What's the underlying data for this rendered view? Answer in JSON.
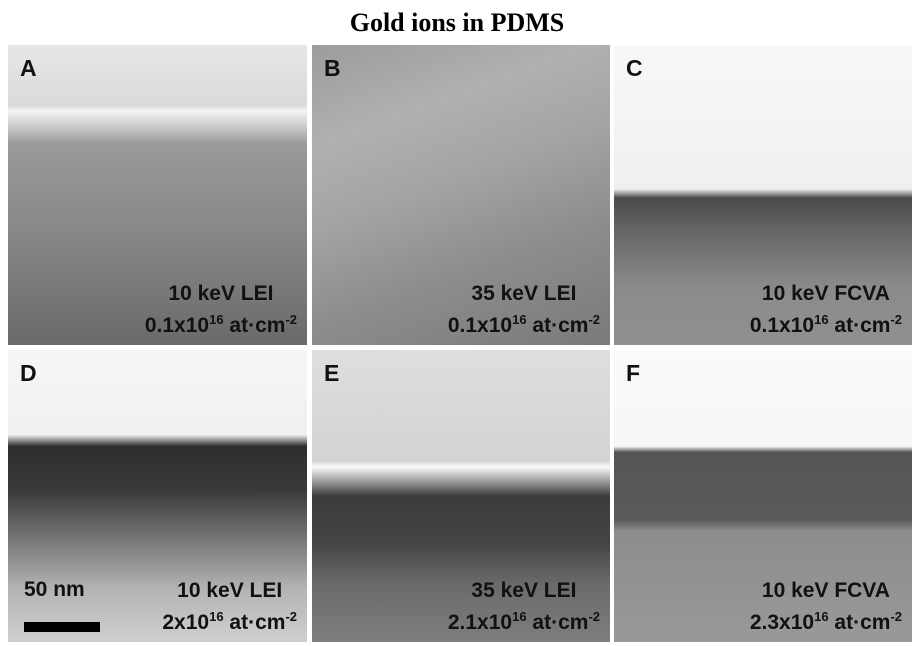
{
  "title": "Gold ions in PDMS",
  "panels": [
    {
      "label": "A",
      "energy": "10 keV LEI",
      "dose": {
        "base": "0.1x10",
        "exp": "16",
        "unit": "at·cm",
        "unit_exp": "-2"
      }
    },
    {
      "label": "B",
      "energy": "35 keV LEI",
      "dose": {
        "base": "0.1x10",
        "exp": "16",
        "unit": "at·cm",
        "unit_exp": "-2"
      }
    },
    {
      "label": "C",
      "energy": "10 keV FCVA",
      "dose": {
        "base": "0.1x10",
        "exp": "16",
        "unit": "at·cm",
        "unit_exp": "-2"
      }
    },
    {
      "label": "D",
      "energy": "10 keV LEI",
      "dose": {
        "base": "2x10",
        "exp": "16",
        "unit": "at·cm",
        "unit_exp": "-2"
      },
      "scale_bar": "50 nm"
    },
    {
      "label": "E",
      "energy": "35 keV LEI",
      "dose": {
        "base": "2.1x10",
        "exp": "16",
        "unit": "at·cm",
        "unit_exp": "-2"
      }
    },
    {
      "label": "F",
      "energy": "10 keV FCVA",
      "dose": {
        "base": "2.3x10",
        "exp": "16",
        "unit": "at·cm",
        "unit_exp": "-2"
      }
    }
  ]
}
